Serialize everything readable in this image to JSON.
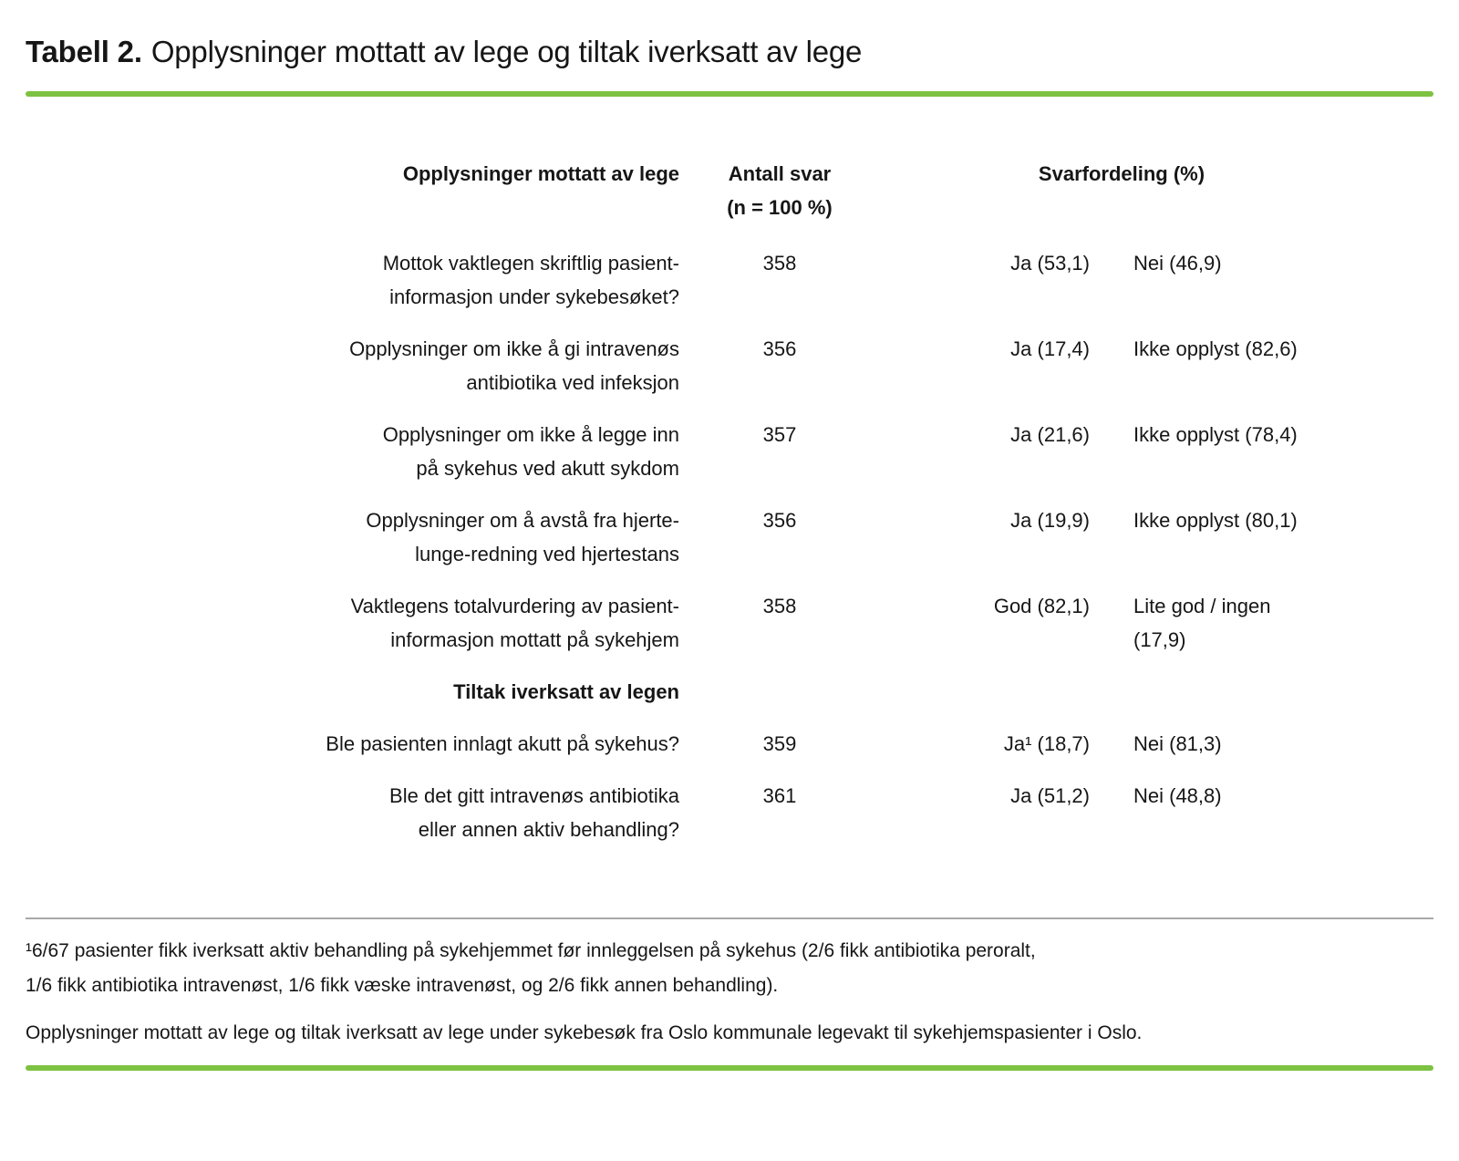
{
  "title": {
    "label": "Tabell 2.",
    "text": "Opplysninger mottatt av lege og tiltak iverksatt av lege"
  },
  "colors": {
    "accent_green": "#7DC242",
    "divider_gray": "#A8A8A8"
  },
  "table": {
    "header_col1": "Opplysninger mottatt av lege",
    "header_col2": "Antall svar\n(n = 100 %)",
    "header_col3": "Svarfordeling (%)",
    "rows": [
      {
        "label": "Mottok vaktlegen skriftlig pasient-\ninformasjon under sykebesøket?",
        "antall": "358",
        "svar1": "Ja (53,1)",
        "svar2": "Nei (46,9)"
      },
      {
        "label": "Opplysninger om ikke å gi intravenøs\nantibiotika ved infeksjon",
        "antall": "356",
        "svar1": "Ja (17,4)",
        "svar2": "Ikke opplyst (82,6)"
      },
      {
        "label": "Opplysninger om ikke å legge inn\npå sykehus ved akutt sykdom",
        "antall": "357",
        "svar1": "Ja (21,6)",
        "svar2": "Ikke opplyst (78,4)"
      },
      {
        "label": "Opplysninger om å avstå fra hjerte-\nlunge-redning ved hjertestans",
        "antall": "356",
        "svar1": "Ja (19,9)",
        "svar2": "Ikke opplyst (80,1)"
      },
      {
        "label": "Vaktlegens totalvurdering av pasient-\ninformasjon mottatt på sykehjem",
        "antall": "358",
        "svar1": "God (82,1)",
        "svar2": "Lite god / ingen\n(17,9)"
      }
    ],
    "section_header": "Tiltak iverksatt av legen",
    "tiltak_rows": [
      {
        "label": "Ble pasienten innlagt akutt på sykehus?",
        "antall": "359",
        "svar1": "Ja¹ (18,7)",
        "svar2": "Nei (81,3)"
      },
      {
        "label": "Ble det gitt intravenøs antibiotika\neller annen aktiv behandling?",
        "antall": "361",
        "svar1": "Ja (51,2)",
        "svar2": "Nei (48,8)"
      }
    ]
  },
  "footnote": "¹6/67 pasienter fikk iverksatt aktiv behandling på sykehjemmet før innleggelsen på sykehus (2/6 fikk antibiotika peroralt,\n1/6 fikk antibiotika intravenøst, 1/6 fikk væske intravenøst, og 2/6 fikk annen behandling).",
  "caption": "Opplysninger mottatt av lege og tiltak iverksatt av lege under sykebesøk fra Oslo kommunale legevakt til sykehjemspasienter i Oslo."
}
